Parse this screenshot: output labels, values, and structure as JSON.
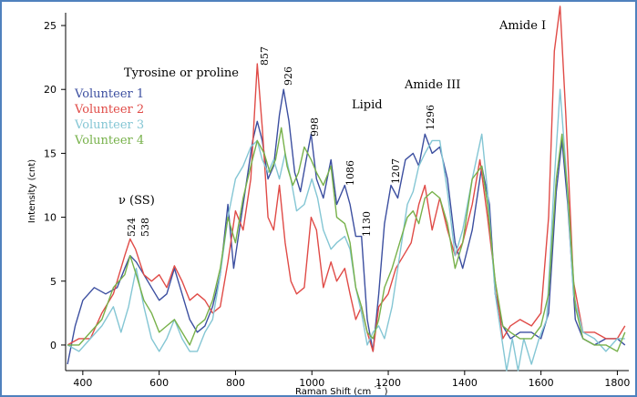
{
  "chart_data": {
    "type": "line",
    "xlabel": "Raman Shift (cm",
    "xlabel_superscript": "-1",
    "xlabel_suffix": ")",
    "ylabel": "Intensity (cnt)",
    "xlim": [
      355,
      1830
    ],
    "ylim": [
      -2,
      26
    ],
    "xticks": [
      400,
      600,
      800,
      1000,
      1200,
      1400,
      1600,
      1800
    ],
    "yticks": [
      0,
      5,
      10,
      15,
      20,
      25
    ],
    "grid": false,
    "legend_placement": "top-left",
    "annotations": [
      "Tyrosine  or proline",
      "Lipid",
      "Amide III",
      "Amide I",
      "ν (SS)"
    ],
    "peak_labels": [
      "524",
      "538",
      "857",
      "926",
      "998",
      "1086",
      "1130",
      "1207",
      "1296"
    ],
    "series": [
      {
        "name": "Volunteer 1",
        "color": "#3c4fa0",
        "points": [
          [
            360,
            -1.5
          ],
          [
            380,
            1.5
          ],
          [
            400,
            3.5
          ],
          [
            430,
            4.5
          ],
          [
            460,
            4.0
          ],
          [
            490,
            4.5
          ],
          [
            510,
            6.0
          ],
          [
            524,
            7.0
          ],
          [
            540,
            6.5
          ],
          [
            560,
            5.5
          ],
          [
            580,
            4.5
          ],
          [
            600,
            3.5
          ],
          [
            620,
            4.0
          ],
          [
            640,
            6.0
          ],
          [
            660,
            4.0
          ],
          [
            680,
            2.0
          ],
          [
            700,
            1.0
          ],
          [
            720,
            1.5
          ],
          [
            740,
            3.0
          ],
          [
            760,
            5.5
          ],
          [
            780,
            11.0
          ],
          [
            795,
            6.0
          ],
          [
            810,
            9.0
          ],
          [
            830,
            13.0
          ],
          [
            845,
            16.0
          ],
          [
            857,
            17.5
          ],
          [
            870,
            16.0
          ],
          [
            885,
            13.0
          ],
          [
            900,
            14.0
          ],
          [
            915,
            18.0
          ],
          [
            926,
            20.0
          ],
          [
            940,
            17.5
          ],
          [
            955,
            13.5
          ],
          [
            970,
            12.0
          ],
          [
            985,
            14.5
          ],
          [
            998,
            16.5
          ],
          [
            1012,
            13.0
          ],
          [
            1030,
            11.5
          ],
          [
            1050,
            14.5
          ],
          [
            1065,
            11.0
          ],
          [
            1086,
            12.5
          ],
          [
            1100,
            11.0
          ],
          [
            1115,
            8.5
          ],
          [
            1130,
            8.5
          ],
          [
            1145,
            2.0
          ],
          [
            1160,
            -0.5
          ],
          [
            1175,
            4.0
          ],
          [
            1190,
            9.5
          ],
          [
            1207,
            12.5
          ],
          [
            1225,
            11.5
          ],
          [
            1245,
            14.5
          ],
          [
            1265,
            15.0
          ],
          [
            1280,
            14.0
          ],
          [
            1296,
            16.5
          ],
          [
            1315,
            15.0
          ],
          [
            1335,
            15.5
          ],
          [
            1355,
            13.0
          ],
          [
            1375,
            8.0
          ],
          [
            1395,
            6.0
          ],
          [
            1420,
            9.0
          ],
          [
            1445,
            14.0
          ],
          [
            1465,
            11.0
          ],
          [
            1480,
            4.0
          ],
          [
            1500,
            1.5
          ],
          [
            1520,
            0.5
          ],
          [
            1545,
            1.0
          ],
          [
            1575,
            1.0
          ],
          [
            1600,
            0.5
          ],
          [
            1620,
            2.5
          ],
          [
            1640,
            12.0
          ],
          [
            1655,
            16.0
          ],
          [
            1670,
            11.0
          ],
          [
            1690,
            2.0
          ],
          [
            1710,
            0.5
          ],
          [
            1740,
            0.0
          ],
          [
            1770,
            0.5
          ],
          [
            1800,
            0.5
          ],
          [
            1820,
            0.0
          ]
        ]
      },
      {
        "name": "Volunteer 2",
        "color": "#e04b47",
        "points": [
          [
            360,
            0.0
          ],
          [
            390,
            0.5
          ],
          [
            420,
            0.5
          ],
          [
            450,
            2.5
          ],
          [
            480,
            4.0
          ],
          [
            510,
            7.0
          ],
          [
            524,
            8.3
          ],
          [
            538,
            7.5
          ],
          [
            560,
            5.5
          ],
          [
            580,
            5.0
          ],
          [
            600,
            5.5
          ],
          [
            620,
            4.5
          ],
          [
            640,
            6.2
          ],
          [
            660,
            5.0
          ],
          [
            680,
            3.5
          ],
          [
            700,
            4.0
          ],
          [
            720,
            3.5
          ],
          [
            740,
            2.5
          ],
          [
            760,
            3.0
          ],
          [
            780,
            6.5
          ],
          [
            800,
            10.5
          ],
          [
            820,
            9.0
          ],
          [
            840,
            13.0
          ],
          [
            857,
            22.0
          ],
          [
            870,
            17.0
          ],
          [
            885,
            10.0
          ],
          [
            900,
            9.0
          ],
          [
            915,
            12.5
          ],
          [
            930,
            8.0
          ],
          [
            945,
            5.0
          ],
          [
            960,
            4.0
          ],
          [
            980,
            4.5
          ],
          [
            998,
            10.0
          ],
          [
            1012,
            9.0
          ],
          [
            1030,
            4.5
          ],
          [
            1050,
            6.5
          ],
          [
            1065,
            5.0
          ],
          [
            1086,
            6.0
          ],
          [
            1100,
            4.0
          ],
          [
            1115,
            2.0
          ],
          [
            1130,
            3.0
          ],
          [
            1145,
            1.0
          ],
          [
            1160,
            -0.5
          ],
          [
            1175,
            3.0
          ],
          [
            1200,
            4.0
          ],
          [
            1220,
            6.0
          ],
          [
            1240,
            7.0
          ],
          [
            1260,
            8.0
          ],
          [
            1280,
            11.0
          ],
          [
            1296,
            12.5
          ],
          [
            1315,
            9.0
          ],
          [
            1335,
            11.5
          ],
          [
            1355,
            9.0
          ],
          [
            1375,
            7.0
          ],
          [
            1395,
            8.0
          ],
          [
            1420,
            11.0
          ],
          [
            1440,
            14.5
          ],
          [
            1460,
            10.0
          ],
          [
            1480,
            5.0
          ],
          [
            1500,
            0.5
          ],
          [
            1520,
            1.5
          ],
          [
            1545,
            2.0
          ],
          [
            1575,
            1.5
          ],
          [
            1600,
            2.5
          ],
          [
            1620,
            10.0
          ],
          [
            1635,
            23.0
          ],
          [
            1650,
            26.5
          ],
          [
            1665,
            18.0
          ],
          [
            1685,
            5.0
          ],
          [
            1710,
            1.0
          ],
          [
            1740,
            1.0
          ],
          [
            1770,
            0.5
          ],
          [
            1800,
            0.5
          ],
          [
            1820,
            1.5
          ]
        ]
      },
      {
        "name": "Volunteer 3",
        "color": "#84c6d4",
        "points": [
          [
            360,
            0.0
          ],
          [
            390,
            -0.5
          ],
          [
            420,
            0.5
          ],
          [
            450,
            1.5
          ],
          [
            480,
            3.0
          ],
          [
            500,
            1.0
          ],
          [
            520,
            3.0
          ],
          [
            540,
            6.0
          ],
          [
            560,
            3.0
          ],
          [
            580,
            0.5
          ],
          [
            600,
            -0.5
          ],
          [
            620,
            0.5
          ],
          [
            640,
            2.0
          ],
          [
            660,
            0.5
          ],
          [
            680,
            -0.5
          ],
          [
            700,
            -0.5
          ],
          [
            720,
            1.0
          ],
          [
            740,
            2.0
          ],
          [
            760,
            5.5
          ],
          [
            780,
            10.0
          ],
          [
            800,
            13.0
          ],
          [
            820,
            14.0
          ],
          [
            840,
            15.5
          ],
          [
            857,
            16.0
          ],
          [
            870,
            14.5
          ],
          [
            885,
            13.5
          ],
          [
            900,
            14.5
          ],
          [
            915,
            13.0
          ],
          [
            930,
            15.0
          ],
          [
            945,
            13.0
          ],
          [
            960,
            10.5
          ],
          [
            980,
            11.0
          ],
          [
            1000,
            13.0
          ],
          [
            1015,
            11.5
          ],
          [
            1030,
            9.0
          ],
          [
            1050,
            7.5
          ],
          [
            1065,
            8.0
          ],
          [
            1086,
            8.5
          ],
          [
            1100,
            7.5
          ],
          [
            1115,
            4.5
          ],
          [
            1130,
            2.5
          ],
          [
            1145,
            0.0
          ],
          [
            1160,
            1.0
          ],
          [
            1175,
            1.5
          ],
          [
            1190,
            0.5
          ],
          [
            1210,
            3.0
          ],
          [
            1230,
            7.0
          ],
          [
            1250,
            11.0
          ],
          [
            1265,
            12.0
          ],
          [
            1280,
            14.0
          ],
          [
            1296,
            15.0
          ],
          [
            1315,
            16.0
          ],
          [
            1335,
            16.0
          ],
          [
            1355,
            12.0
          ],
          [
            1375,
            7.0
          ],
          [
            1395,
            9.0
          ],
          [
            1420,
            13.0
          ],
          [
            1445,
            16.5
          ],
          [
            1460,
            12.0
          ],
          [
            1480,
            4.0
          ],
          [
            1500,
            0.0
          ],
          [
            1510,
            -2.0
          ],
          [
            1525,
            0.5
          ],
          [
            1540,
            -2.0
          ],
          [
            1555,
            0.5
          ],
          [
            1575,
            -1.5
          ],
          [
            1595,
            0.5
          ],
          [
            1615,
            2.0
          ],
          [
            1635,
            13.0
          ],
          [
            1650,
            20.0
          ],
          [
            1665,
            14.0
          ],
          [
            1685,
            4.0
          ],
          [
            1710,
            1.0
          ],
          [
            1740,
            0.5
          ],
          [
            1770,
            -0.5
          ],
          [
            1800,
            0.5
          ],
          [
            1820,
            0.5
          ]
        ]
      },
      {
        "name": "Volunteer 4",
        "color": "#77b14a",
        "points": [
          [
            360,
            0.0
          ],
          [
            390,
            0.0
          ],
          [
            420,
            1.0
          ],
          [
            450,
            2.0
          ],
          [
            480,
            4.5
          ],
          [
            510,
            5.5
          ],
          [
            524,
            7.0
          ],
          [
            540,
            5.5
          ],
          [
            560,
            3.5
          ],
          [
            580,
            2.5
          ],
          [
            600,
            1.0
          ],
          [
            620,
            1.5
          ],
          [
            640,
            2.0
          ],
          [
            660,
            1.0
          ],
          [
            680,
            0.0
          ],
          [
            700,
            1.5
          ],
          [
            720,
            2.0
          ],
          [
            740,
            3.5
          ],
          [
            760,
            6.0
          ],
          [
            780,
            10.0
          ],
          [
            800,
            8.0
          ],
          [
            820,
            11.5
          ],
          [
            840,
            14.0
          ],
          [
            857,
            16.0
          ],
          [
            875,
            15.0
          ],
          [
            890,
            13.5
          ],
          [
            905,
            14.5
          ],
          [
            920,
            17.0
          ],
          [
            935,
            14.0
          ],
          [
            950,
            12.5
          ],
          [
            965,
            13.5
          ],
          [
            980,
            15.5
          ],
          [
            998,
            14.5
          ],
          [
            1012,
            13.5
          ],
          [
            1030,
            12.5
          ],
          [
            1050,
            14.0
          ],
          [
            1065,
            10.0
          ],
          [
            1086,
            9.5
          ],
          [
            1100,
            8.0
          ],
          [
            1115,
            4.5
          ],
          [
            1130,
            3.0
          ],
          [
            1145,
            1.0
          ],
          [
            1160,
            0.5
          ],
          [
            1175,
            2.0
          ],
          [
            1190,
            4.5
          ],
          [
            1210,
            6.0
          ],
          [
            1230,
            8.0
          ],
          [
            1250,
            10.0
          ],
          [
            1265,
            10.5
          ],
          [
            1280,
            9.5
          ],
          [
            1296,
            11.5
          ],
          [
            1315,
            12.0
          ],
          [
            1335,
            11.5
          ],
          [
            1355,
            9.5
          ],
          [
            1375,
            6.0
          ],
          [
            1395,
            8.0
          ],
          [
            1420,
            13.0
          ],
          [
            1445,
            14.0
          ],
          [
            1460,
            11.0
          ],
          [
            1480,
            5.0
          ],
          [
            1500,
            1.5
          ],
          [
            1520,
            1.0
          ],
          [
            1545,
            0.5
          ],
          [
            1575,
            0.5
          ],
          [
            1600,
            1.5
          ],
          [
            1620,
            4.0
          ],
          [
            1640,
            13.0
          ],
          [
            1655,
            16.5
          ],
          [
            1670,
            12.0
          ],
          [
            1690,
            3.0
          ],
          [
            1710,
            0.5
          ],
          [
            1740,
            0.0
          ],
          [
            1770,
            0.0
          ],
          [
            1800,
            -0.5
          ],
          [
            1820,
            1.0
          ]
        ]
      }
    ]
  }
}
